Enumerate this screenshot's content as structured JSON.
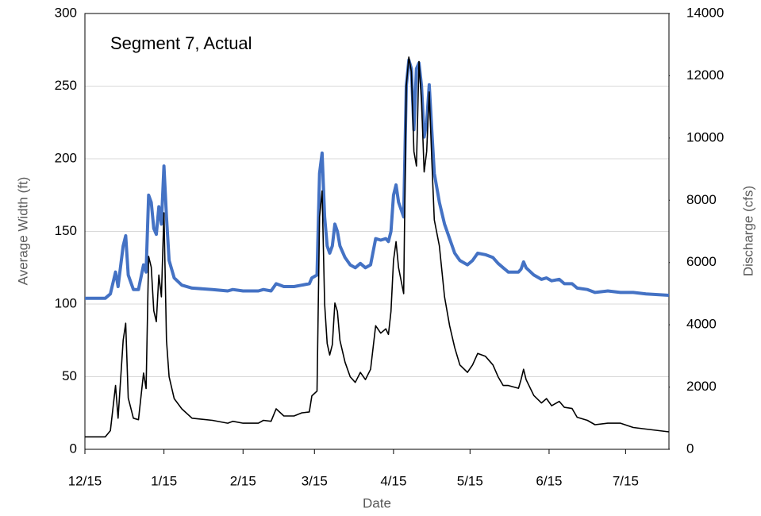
{
  "chart_data": {
    "type": "line",
    "annotation": "Segment 7, Actual",
    "x_label": "Date",
    "y_label": "Average Width (ft)",
    "y2_label": "Discharge (cfs)",
    "x": [
      0,
      8,
      10,
      12,
      13,
      15,
      16,
      17,
      19,
      21,
      23,
      24,
      25,
      26,
      27,
      28,
      29,
      30,
      31,
      32,
      33,
      35,
      38,
      42,
      50,
      56,
      58,
      62,
      68,
      70,
      73,
      75,
      78,
      82,
      85,
      88,
      89,
      91,
      92,
      93,
      94,
      95,
      96,
      97,
      98,
      99,
      100,
      102,
      104,
      106,
      108,
      110,
      112,
      114,
      116,
      118,
      119,
      120,
      121,
      122,
      123,
      125,
      126,
      127,
      128,
      129,
      130,
      131,
      132,
      133,
      134,
      135,
      136,
      137,
      139,
      141,
      143,
      145,
      147,
      150,
      152,
      154,
      157,
      160,
      162,
      164,
      166,
      170,
      171,
      172,
      173,
      176,
      179,
      181,
      183,
      186,
      188,
      191,
      193,
      197,
      200,
      205,
      210,
      215,
      220,
      229
    ],
    "series": [
      {
        "color": "#4472c4",
        "width": 4,
        "values": [
          104,
          104,
          107,
          122,
          112,
          140,
          147,
          120,
          110,
          110,
          127,
          122,
          175,
          170,
          152,
          148,
          167,
          155,
          195,
          160,
          130,
          118,
          113,
          111,
          110,
          109,
          110,
          109,
          109,
          110,
          109,
          114,
          112,
          112,
          113,
          114,
          118,
          120,
          190,
          204,
          160,
          140,
          135,
          140,
          155,
          150,
          140,
          132,
          127,
          125,
          128,
          125,
          127,
          145,
          144,
          145,
          143,
          150,
          175,
          182,
          170,
          160,
          250,
          268,
          262,
          220,
          262,
          266,
          250,
          215,
          225,
          251,
          220,
          190,
          170,
          155,
          145,
          135,
          130,
          127,
          130,
          135,
          134,
          132,
          128,
          125,
          122,
          122,
          124,
          129,
          125,
          120,
          117,
          118,
          116,
          117,
          114,
          114,
          111,
          110,
          108,
          109,
          108,
          108,
          107,
          106
        ]
      },
      {
        "color": "#000000",
        "width": 1.6,
        "axis": "y2",
        "values": [
          400,
          400,
          600,
          2050,
          1000,
          3500,
          4050,
          1650,
          1000,
          950,
          2450,
          1950,
          6200,
          5850,
          4450,
          4100,
          5600,
          4900,
          7600,
          3500,
          2330,
          1630,
          1300,
          1000,
          930,
          840,
          900,
          840,
          840,
          930,
          900,
          1300,
          1070,
          1070,
          1170,
          1200,
          1720,
          1870,
          7470,
          8300,
          4670,
          3400,
          3030,
          3360,
          4700,
          4430,
          3500,
          2800,
          2330,
          2150,
          2470,
          2240,
          2570,
          3970,
          3730,
          3870,
          3690,
          4430,
          6070,
          6670,
          5830,
          5000,
          11670,
          12600,
          12130,
          9570,
          9100,
          12460,
          11200,
          8910,
          9570,
          11480,
          9330,
          7370,
          6530,
          4900,
          3970,
          3270,
          2710,
          2470,
          2710,
          3080,
          2990,
          2710,
          2330,
          2050,
          2050,
          1960,
          2240,
          2570,
          2240,
          1730,
          1490,
          1630,
          1400,
          1540,
          1350,
          1310,
          1030,
          930,
          790,
          840,
          840,
          700,
          650,
          560
        ]
      }
    ],
    "xlim": [
      0,
      229
    ],
    "xticks": [
      {
        "value": 0,
        "label": "12/15"
      },
      {
        "value": 31,
        "label": "1/15"
      },
      {
        "value": 62,
        "label": "2/15"
      },
      {
        "value": 90,
        "label": "3/15"
      },
      {
        "value": 121,
        "label": "4/15"
      },
      {
        "value": 151,
        "label": "5/15"
      },
      {
        "value": 182,
        "label": "6/15"
      },
      {
        "value": 212,
        "label": "7/15"
      }
    ],
    "ylim": [
      0,
      300
    ],
    "yticks": [
      0,
      50,
      100,
      150,
      200,
      250,
      300
    ],
    "y2lim": [
      0,
      14000
    ],
    "y2ticks": [
      0,
      2000,
      4000,
      6000,
      8000,
      10000,
      12000,
      14000
    ],
    "grid": true
  }
}
